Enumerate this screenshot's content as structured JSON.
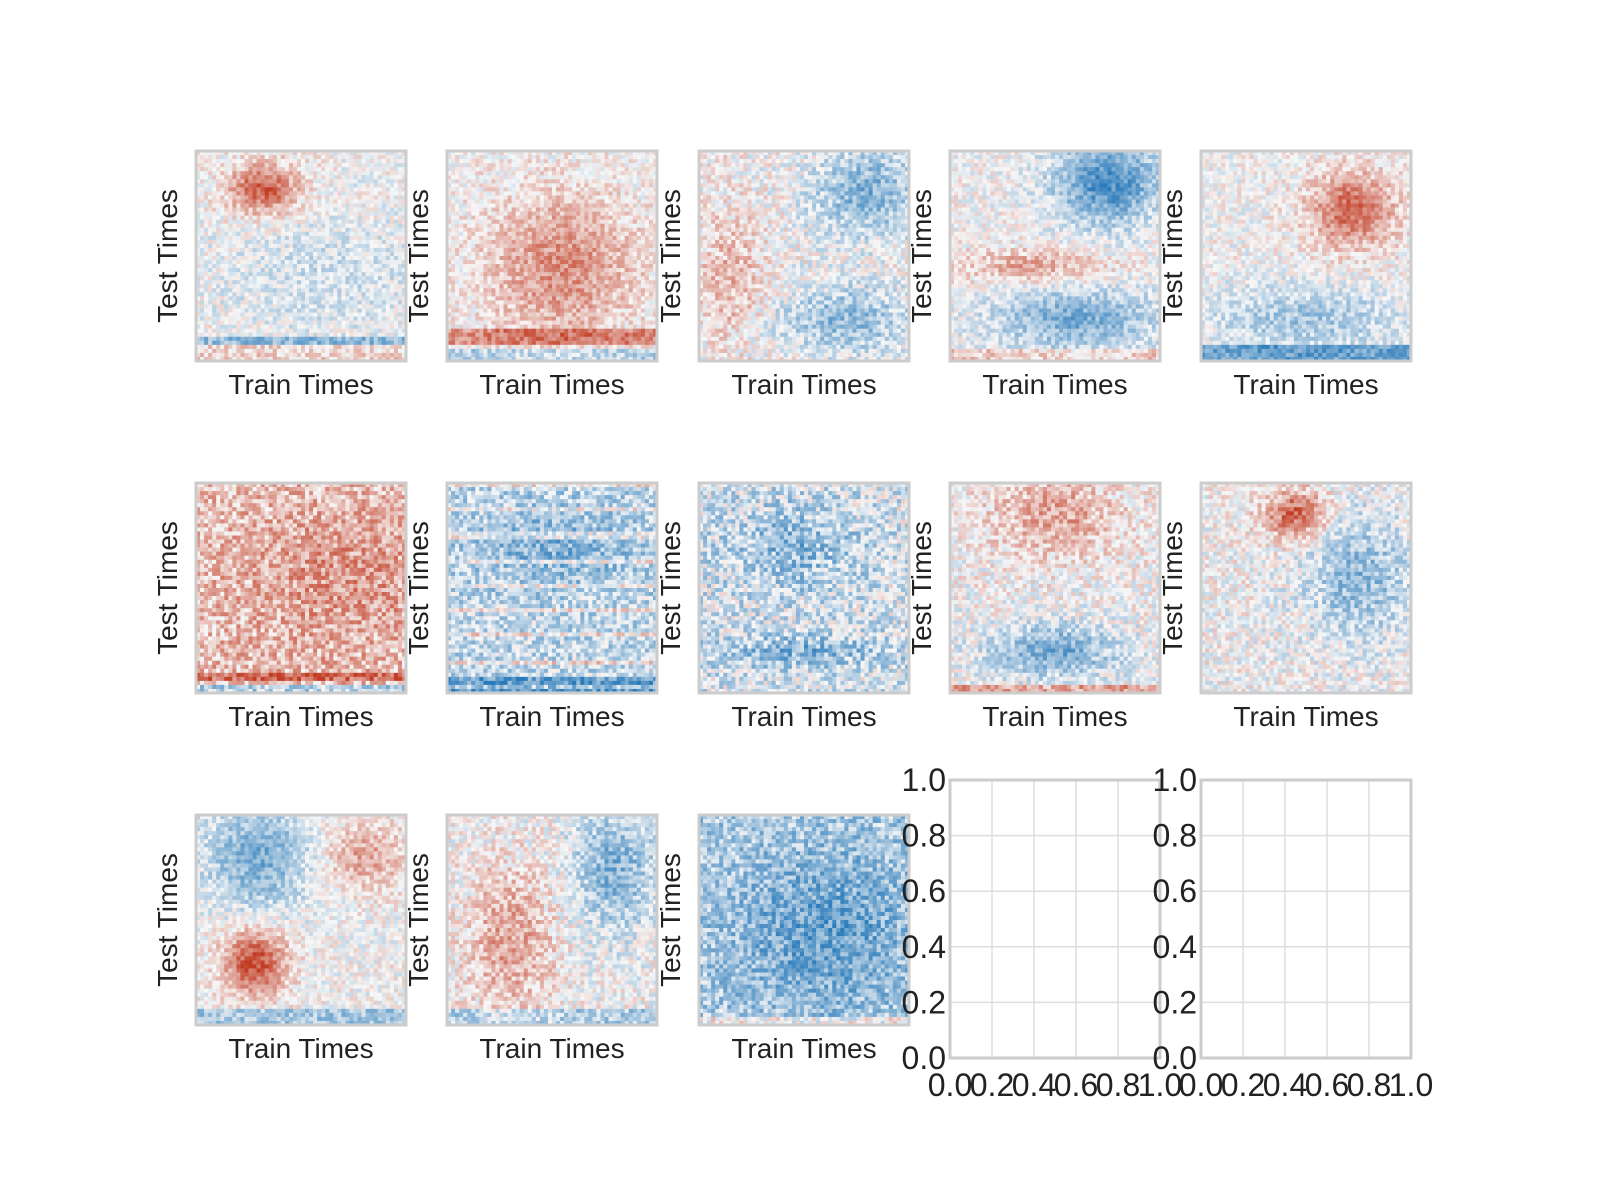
{
  "chart_data": [
    {
      "type": "heatmap",
      "xlabel": "Train Times",
      "ylabel": "Test Times",
      "pattern": "red-upper-left-blob, bluish lower half"
    },
    {
      "type": "heatmap",
      "xlabel": "Train Times",
      "ylabel": "Test Times",
      "pattern": "red central and lower region"
    },
    {
      "type": "heatmap",
      "xlabel": "Train Times",
      "ylabel": "Test Times",
      "pattern": "blue upper-right and lower bands, faint red left"
    },
    {
      "type": "heatmap",
      "xlabel": "Train Times",
      "ylabel": "Test Times",
      "pattern": "strong blue top-right and bottom, red middle band"
    },
    {
      "type": "heatmap",
      "xlabel": "Train Times",
      "ylabel": "Test Times",
      "pattern": "red upper-right blob, blue lower area"
    },
    {
      "type": "heatmap",
      "xlabel": "Train Times",
      "ylabel": "Test Times",
      "pattern": "mostly red, red lower band"
    },
    {
      "type": "heatmap",
      "xlabel": "Train Times",
      "ylabel": "Test Times",
      "pattern": "mostly blue with faint red stripes"
    },
    {
      "type": "heatmap",
      "xlabel": "Train Times",
      "ylabel": "Test Times",
      "pattern": "mixed, blue upper-middle, blue lower band"
    },
    {
      "type": "heatmap",
      "xlabel": "Train Times",
      "ylabel": "Test Times",
      "pattern": "red upper area, blue lower middle, red bottom row"
    },
    {
      "type": "heatmap",
      "xlabel": "Train Times",
      "ylabel": "Test Times",
      "pattern": "red upper-center blob, blue right"
    },
    {
      "type": "heatmap",
      "xlabel": "Train Times",
      "ylabel": "Test Times",
      "pattern": "blue top-left, red bottom-left blob"
    },
    {
      "type": "heatmap",
      "xlabel": "Train Times",
      "ylabel": "Test Times",
      "pattern": "red left band, blue upper-right"
    },
    {
      "type": "heatmap",
      "xlabel": "Train Times",
      "ylabel": "Test Times",
      "pattern": "predominantly blue"
    },
    {
      "type": "line",
      "empty": true,
      "xlim": [
        0.0,
        1.0
      ],
      "ylim": [
        0.0,
        1.0
      ],
      "xticks": [
        "0.0",
        "0.2",
        "0.4",
        "0.6",
        "0.8",
        "1.0"
      ],
      "yticks": [
        "0.0",
        "0.2",
        "0.4",
        "0.6",
        "0.8",
        "1.0"
      ],
      "grid": true
    },
    {
      "type": "line",
      "empty": true,
      "xlim": [
        0.0,
        1.0
      ],
      "ylim": [
        0.0,
        1.0
      ],
      "xticks": [
        "0.0",
        "0.2",
        "0.4",
        "0.6",
        "0.8",
        "1.0"
      ],
      "yticks": [
        "0.0",
        "0.2",
        "0.4",
        "0.6",
        "0.8",
        "1.0"
      ],
      "grid": true
    }
  ],
  "colors": {
    "positive": "#c23b22",
    "negative": "#2b7bba",
    "neutral": "#f7f7f7",
    "frame": "#cccccc",
    "grid": "#dddddd"
  }
}
